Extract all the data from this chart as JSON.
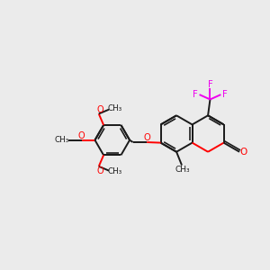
{
  "bg_color": "#ebebeb",
  "bond_color": "#1a1a1a",
  "oxygen_color": "#ff0000",
  "fluorine_color": "#ee00ee",
  "bond_lw": 1.4,
  "figsize": [
    3.0,
    3.0
  ],
  "dpi": 100,
  "xlim": [
    0,
    10
  ],
  "ylim": [
    0,
    10
  ]
}
